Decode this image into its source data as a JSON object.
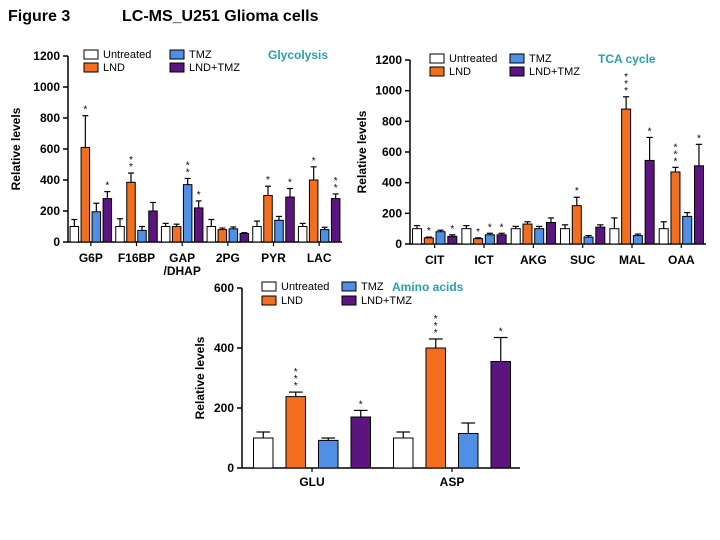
{
  "figure": {
    "label": "Figure 3",
    "title": "LC-MS_U251 Glioma cells"
  },
  "colors": {
    "Untreated": "#ffffff",
    "LND": "#f26f1f",
    "TMZ": "#4f90e6",
    "LND+TMZ": "#5c157f",
    "panel_title": "#2aa0a8"
  },
  "chart_data": [
    {
      "type": "bar",
      "title": "Glycolysis",
      "ylabel": "Relative levels",
      "xlabel": "",
      "ylim": [
        0,
        1200
      ],
      "yticks": [
        "0",
        "200",
        "400",
        "600",
        "800",
        "1000",
        "1200"
      ],
      "legend": [
        "Untreated",
        "LND",
        "TMZ",
        "LND+TMZ"
      ],
      "categories": [
        "G6P",
        "F16BP",
        "GAP /DHAP",
        "2PG",
        "PYR",
        "LAC"
      ],
      "series": [
        {
          "name": "Untreated",
          "values": [
            100,
            100,
            100,
            100,
            100,
            100
          ],
          "errors": [
            45,
            50,
            20,
            45,
            35,
            20
          ],
          "stars": [
            "",
            "",
            "",
            "",
            "",
            ""
          ]
        },
        {
          "name": "LND",
          "values": [
            610,
            385,
            100,
            80,
            300,
            400
          ],
          "errors": [
            205,
            60,
            15,
            10,
            60,
            85
          ],
          "stars": [
            "*",
            "**",
            "",
            "",
            "*",
            "*"
          ]
        },
        {
          "name": "TMZ",
          "values": [
            195,
            75,
            370,
            85,
            140,
            80
          ],
          "errors": [
            55,
            25,
            40,
            12,
            25,
            15
          ],
          "stars": [
            "",
            "",
            "**",
            "",
            "",
            ""
          ]
        },
        {
          "name": "LND+TMZ",
          "values": [
            280,
            200,
            220,
            55,
            290,
            280
          ],
          "errors": [
            45,
            55,
            45,
            5,
            55,
            30
          ],
          "stars": [
            "*",
            "",
            "*",
            "",
            "*",
            "**"
          ]
        }
      ]
    },
    {
      "type": "bar",
      "title": "TCA cycle",
      "ylabel": "Relative levels",
      "xlabel": "",
      "ylim": [
        0,
        1200
      ],
      "yticks": [
        "0",
        "200",
        "400",
        "600",
        "800",
        "1000",
        "1200"
      ],
      "legend": [
        "Untreated",
        "LND",
        "TMZ",
        "LND+TMZ"
      ],
      "categories": [
        "CIT",
        "ICT",
        "AKG",
        "SUC",
        "MAL",
        "OAA"
      ],
      "series": [
        {
          "name": "Untreated",
          "values": [
            100,
            100,
            100,
            100,
            100,
            100
          ],
          "errors": [
            20,
            20,
            15,
            25,
            70,
            45
          ],
          "stars": [
            "",
            "",
            "",
            "",
            "",
            ""
          ]
        },
        {
          "name": "LND",
          "values": [
            40,
            35,
            130,
            250,
            880,
            470
          ],
          "errors": [
            5,
            5,
            15,
            55,
            80,
            30
          ],
          "stars": [
            "*",
            "*",
            "",
            "*",
            "***",
            "***"
          ]
        },
        {
          "name": "TMZ",
          "values": [
            80,
            60,
            100,
            45,
            55,
            180
          ],
          "errors": [
            10,
            10,
            15,
            10,
            10,
            25
          ],
          "stars": [
            "",
            "*",
            "",
            "",
            "",
            ""
          ]
        },
        {
          "name": "LND+TMZ",
          "values": [
            50,
            60,
            140,
            110,
            545,
            510
          ],
          "errors": [
            10,
            10,
            30,
            15,
            150,
            140
          ],
          "stars": [
            "*",
            "*",
            "",
            "",
            "*",
            "*"
          ]
        }
      ]
    },
    {
      "type": "bar",
      "title": "Amino acids",
      "ylabel": "Relative levels",
      "xlabel": "",
      "ylim": [
        0,
        600
      ],
      "yticks": [
        "0",
        "200",
        "400",
        "600"
      ],
      "legend": [
        "Untreated",
        "LND",
        "TMZ",
        "LND+TMZ"
      ],
      "categories": [
        "GLU",
        "ASP"
      ],
      "series": [
        {
          "name": "Untreated",
          "values": [
            100,
            100
          ],
          "errors": [
            20,
            20
          ],
          "stars": [
            "",
            ""
          ]
        },
        {
          "name": "LND",
          "values": [
            238,
            400
          ],
          "errors": [
            15,
            30
          ],
          "stars": [
            "***",
            "***"
          ]
        },
        {
          "name": "TMZ",
          "values": [
            92,
            115
          ],
          "errors": [
            8,
            35
          ],
          "stars": [
            "",
            ""
          ]
        },
        {
          "name": "LND+TMZ",
          "values": [
            170,
            355
          ],
          "errors": [
            22,
            80
          ],
          "stars": [
            "*",
            "*"
          ]
        }
      ]
    }
  ]
}
